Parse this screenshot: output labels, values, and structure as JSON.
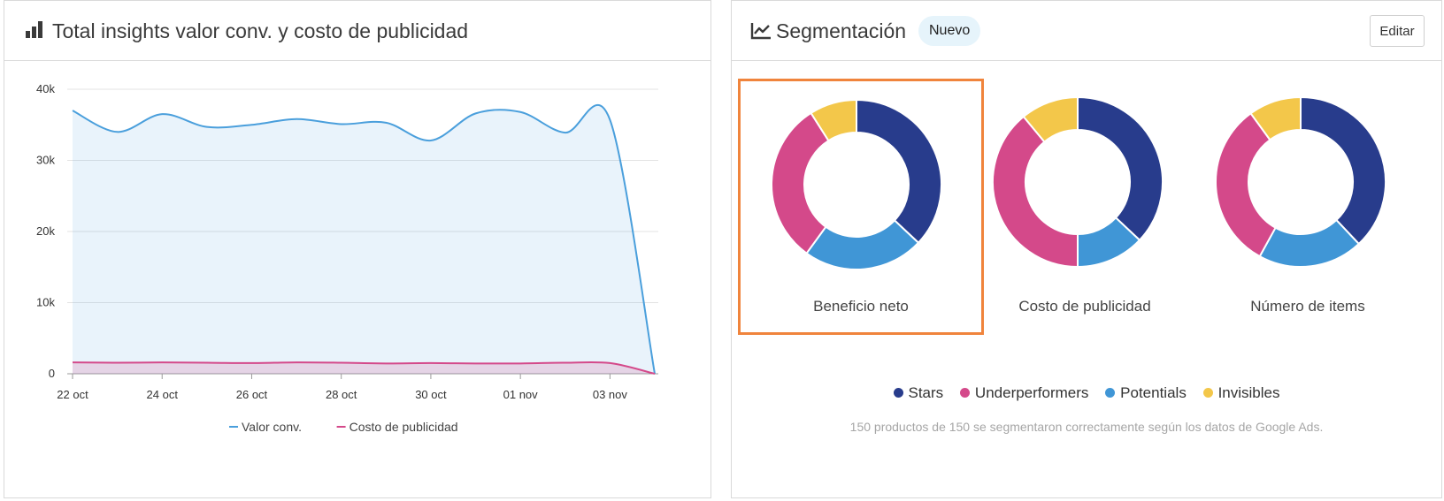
{
  "left_panel": {
    "title": "Total insights valor conv. y costo de publicidad",
    "icon": "bar-chart-icon"
  },
  "right_panel": {
    "title": "Segmentación",
    "icon": "line-chart-icon",
    "badge": "Nuevo",
    "edit_label": "Editar",
    "donuts": [
      {
        "label": "Beneficio neto",
        "selected": true
      },
      {
        "label": "Costo de publicidad",
        "selected": false
      },
      {
        "label": "Número de items",
        "selected": false
      }
    ],
    "legend": [
      {
        "label": "Stars",
        "color": "#283c8c"
      },
      {
        "label": "Underperformers",
        "color": "#d4498a"
      },
      {
        "label": "Potentials",
        "color": "#4096d6"
      },
      {
        "label": "Invisibles",
        "color": "#f3c74a"
      }
    ],
    "note": "150 productos de 150 se segmentaron correctamente según los datos de Google Ads."
  },
  "chart_data": [
    {
      "type": "area",
      "title": "Total insights valor conv. y costo de publicidad",
      "x_ticks": [
        "22 oct",
        "24 oct",
        "26 oct",
        "28 oct",
        "30 oct",
        "01 nov",
        "03 nov"
      ],
      "y_ticks": [
        "0",
        "10k",
        "20k",
        "30k",
        "40k"
      ],
      "ylim": [
        0,
        40000
      ],
      "x": [
        "22 oct",
        "23 oct",
        "24 oct",
        "25 oct",
        "26 oct",
        "27 oct",
        "28 oct",
        "29 oct",
        "30 oct",
        "31 oct",
        "01 nov",
        "02 nov",
        "03 nov",
        "04 nov"
      ],
      "series": [
        {
          "name": "Valor conv.",
          "color": "#4a9fdc",
          "values": [
            37000,
            34000,
            36500,
            34700,
            35000,
            35800,
            35100,
            35300,
            32800,
            36600,
            36800,
            33900,
            35700,
            0
          ]
        },
        {
          "name": "Costo de publicidad",
          "color": "#d4498a",
          "values": [
            1600,
            1550,
            1600,
            1550,
            1500,
            1600,
            1550,
            1450,
            1500,
            1450,
            1450,
            1550,
            1500,
            0
          ]
        }
      ],
      "grid": true,
      "legend_position": "bottom"
    },
    {
      "type": "pie",
      "title": "Beneficio neto",
      "categories": [
        "Stars",
        "Potentials",
        "Underperformers",
        "Invisibles"
      ],
      "values": [
        37,
        23,
        31,
        9
      ],
      "colors": [
        "#283c8c",
        "#4096d6",
        "#d4498a",
        "#f3c74a"
      ]
    },
    {
      "type": "pie",
      "title": "Costo de publicidad",
      "categories": [
        "Stars",
        "Potentials",
        "Underperformers",
        "Invisibles"
      ],
      "values": [
        37,
        13,
        39,
        11
      ],
      "colors": [
        "#283c8c",
        "#4096d6",
        "#d4498a",
        "#f3c74a"
      ]
    },
    {
      "type": "pie",
      "title": "Número de items",
      "categories": [
        "Stars",
        "Potentials",
        "Underperformers",
        "Invisibles"
      ],
      "values": [
        38,
        20,
        32,
        10
      ],
      "colors": [
        "#283c8c",
        "#4096d6",
        "#d4498a",
        "#f3c74a"
      ]
    }
  ]
}
